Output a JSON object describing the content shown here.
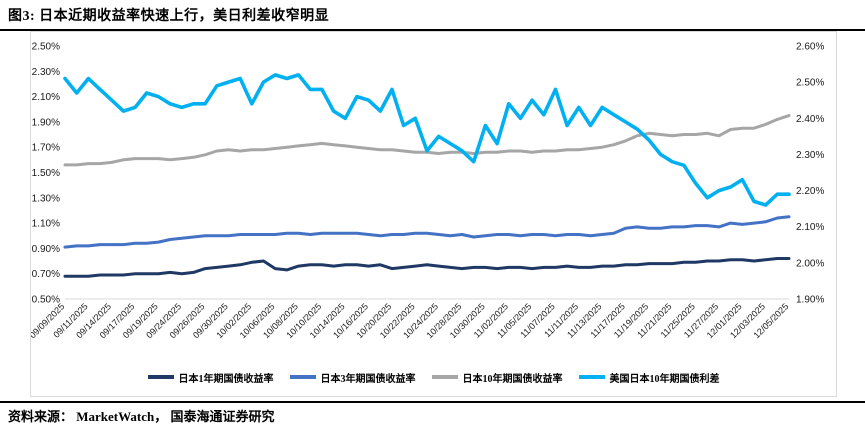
{
  "title": "图3:  日本近期收益率快速上行，美日利差收窄明显",
  "source": "资料来源： MarketWatch， 国泰海通证券研究",
  "colors": {
    "navy": "#1F3864",
    "blue": "#4472C4",
    "gray": "#A6A6A6",
    "cyan": "#00B0F0",
    "axis_text": "#1a1a1a",
    "box_border": "#d9d9d9",
    "baseline": "#d9d9d9"
  },
  "chart_data": {
    "type": "line",
    "title": "图3:  日本近期收益率快速上行，美日利差收窄明显",
    "legend_position": "bottom",
    "grid": false,
    "x_labels": [
      "09/09/2025",
      "09/11/2025",
      "09/14/2025",
      "09/17/2025",
      "09/19/2025",
      "09/24/2025",
      "09/26/2025",
      "09/30/2025",
      "10/02/2025",
      "10/06/2025",
      "10/08/2025",
      "10/10/2025",
      "10/14/2025",
      "10/16/2025",
      "10/20/2025",
      "10/22/2025",
      "10/24/2025",
      "10/28/2025",
      "10/30/2025",
      "11/02/2025",
      "11/05/2025",
      "11/07/2025",
      "11/11/2025",
      "11/13/2025",
      "11/17/2025",
      "11/19/2025",
      "11/21/2025",
      "11/25/2025",
      "11/27/2025",
      "12/01/2025",
      "12/03/2025",
      "12/05/2025"
    ],
    "left_axis": {
      "min": 0.5,
      "max": 2.5,
      "ticks": [
        "2.50%",
        "2.30%",
        "2.10%",
        "1.90%",
        "1.70%",
        "1.50%",
        "1.30%",
        "1.10%",
        "0.90%",
        "0.70%",
        "0.50%"
      ]
    },
    "right_axis": {
      "min": 1.9,
      "max": 2.6,
      "ticks": [
        "2.60%",
        "2.50%",
        "2.40%",
        "2.30%",
        "2.20%",
        "2.10%",
        "2.00%",
        "1.90%"
      ]
    },
    "series": [
      {
        "name": "日本1年期国债收益率",
        "axis": "left",
        "color": "#1F3864",
        "width": 3,
        "values": [
          0.68,
          0.68,
          0.68,
          0.69,
          0.69,
          0.69,
          0.7,
          0.7,
          0.7,
          0.71,
          0.7,
          0.71,
          0.74,
          0.75,
          0.76,
          0.77,
          0.79,
          0.8,
          0.74,
          0.73,
          0.76,
          0.77,
          0.77,
          0.76,
          0.77,
          0.77,
          0.76,
          0.77,
          0.74,
          0.75,
          0.76,
          0.77,
          0.76,
          0.75,
          0.74,
          0.75,
          0.75,
          0.74,
          0.75,
          0.75,
          0.74,
          0.75,
          0.75,
          0.76,
          0.75,
          0.75,
          0.76,
          0.76,
          0.77,
          0.77,
          0.78,
          0.78,
          0.78,
          0.79,
          0.79,
          0.8,
          0.8,
          0.81,
          0.81,
          0.8,
          0.81,
          0.82,
          0.82
        ]
      },
      {
        "name": "日本3年期国债收益率",
        "axis": "left",
        "color": "#4472C4",
        "width": 3,
        "values": [
          0.91,
          0.92,
          0.92,
          0.93,
          0.93,
          0.93,
          0.94,
          0.94,
          0.95,
          0.97,
          0.98,
          0.99,
          1.0,
          1.0,
          1.0,
          1.01,
          1.01,
          1.01,
          1.01,
          1.02,
          1.02,
          1.01,
          1.02,
          1.02,
          1.02,
          1.02,
          1.01,
          1.0,
          1.01,
          1.01,
          1.02,
          1.02,
          1.01,
          1.0,
          1.01,
          0.99,
          1.0,
          1.01,
          1.01,
          1.0,
          1.01,
          1.01,
          1.0,
          1.01,
          1.01,
          1.0,
          1.01,
          1.02,
          1.06,
          1.07,
          1.06,
          1.06,
          1.07,
          1.07,
          1.08,
          1.08,
          1.07,
          1.1,
          1.09,
          1.1,
          1.11,
          1.14,
          1.15
        ]
      },
      {
        "name": "日本10年期国债收益率",
        "axis": "left",
        "color": "#A6A6A6",
        "width": 3,
        "values": [
          1.56,
          1.56,
          1.57,
          1.57,
          1.58,
          1.6,
          1.61,
          1.61,
          1.61,
          1.6,
          1.61,
          1.62,
          1.64,
          1.67,
          1.68,
          1.67,
          1.68,
          1.68,
          1.69,
          1.7,
          1.71,
          1.72,
          1.73,
          1.72,
          1.71,
          1.7,
          1.69,
          1.68,
          1.68,
          1.67,
          1.66,
          1.66,
          1.65,
          1.66,
          1.66,
          1.65,
          1.66,
          1.66,
          1.67,
          1.67,
          1.66,
          1.67,
          1.67,
          1.68,
          1.68,
          1.69,
          1.7,
          1.72,
          1.75,
          1.79,
          1.81,
          1.8,
          1.79,
          1.8,
          1.8,
          1.81,
          1.79,
          1.84,
          1.85,
          1.85,
          1.88,
          1.92,
          1.95
        ]
      },
      {
        "name": "美国日本10年期国债利差",
        "axis": "right",
        "color": "#00B0F0",
        "width": 3.6,
        "values": [
          2.51,
          2.47,
          2.51,
          2.48,
          2.45,
          2.42,
          2.43,
          2.47,
          2.46,
          2.44,
          2.43,
          2.44,
          2.44,
          2.49,
          2.5,
          2.51,
          2.44,
          2.5,
          2.52,
          2.51,
          2.52,
          2.48,
          2.48,
          2.42,
          2.4,
          2.46,
          2.45,
          2.42,
          2.48,
          2.38,
          2.4,
          2.31,
          2.35,
          2.33,
          2.31,
          2.28,
          2.38,
          2.33,
          2.44,
          2.4,
          2.45,
          2.41,
          2.48,
          2.38,
          2.43,
          2.38,
          2.43,
          2.41,
          2.39,
          2.37,
          2.34,
          2.3,
          2.28,
          2.27,
          2.22,
          2.18,
          2.2,
          2.21,
          2.23,
          2.17,
          2.16,
          2.19,
          2.19
        ]
      }
    ]
  }
}
